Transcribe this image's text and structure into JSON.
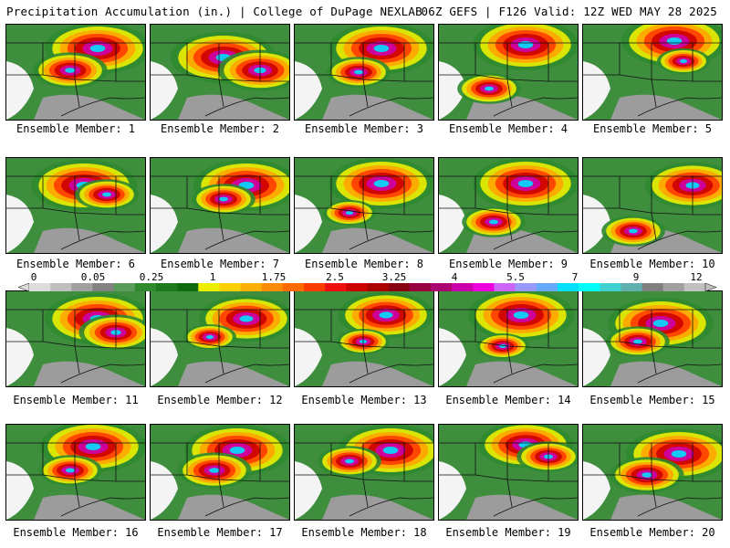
{
  "header": {
    "left": "Precipitation Accumulation (in.) | College of DuPage NEXLAB",
    "right": "06Z GEFS | F126 Valid: 12Z WED MAY 28 2025"
  },
  "panels": [
    {
      "label": "Ensemble Member: 1"
    },
    {
      "label": "Ensemble Member: 2"
    },
    {
      "label": "Ensemble Member: 3"
    },
    {
      "label": "Ensemble Member: 4"
    },
    {
      "label": "Ensemble Member: 5"
    },
    {
      "label": "Ensemble Member: 6"
    },
    {
      "label": "Ensemble Member: 7"
    },
    {
      "label": "Ensemble Member: 8"
    },
    {
      "label": "Ensemble Member: 9"
    },
    {
      "label": "Ensemble Member: 10"
    },
    {
      "label": "Ensemble Member: 11"
    },
    {
      "label": "Ensemble Member: 12"
    },
    {
      "label": "Ensemble Member: 13"
    },
    {
      "label": "Ensemble Member: 14"
    },
    {
      "label": "Ensemble Member: 15"
    },
    {
      "label": "Ensemble Member: 16"
    },
    {
      "label": "Ensemble Member: 17"
    },
    {
      "label": "Ensemble Member: 18"
    },
    {
      "label": "Ensemble Member: 19"
    },
    {
      "label": "Ensemble Member: 20"
    }
  ],
  "colorbar": {
    "tick_labels": [
      "0",
      "0.05",
      "0.25",
      "1",
      "1.75",
      "2.5",
      "3.25",
      "4",
      "5.5",
      "7",
      "9",
      "12"
    ],
    "colors": [
      "#dcdcdc",
      "#bebebe",
      "#a0a0a0",
      "#828282",
      "#5a9a5a",
      "#2f8a2f",
      "#1c7a1c",
      "#0f6a0f",
      "#eeee00",
      "#ffd000",
      "#ffb000",
      "#ff8c00",
      "#ff6a00",
      "#ff3c00",
      "#ee1010",
      "#cc0000",
      "#aa0000",
      "#880010",
      "#990040",
      "#aa0070",
      "#cc00aa",
      "#ee00dd",
      "#cc66ff",
      "#9999ff",
      "#66aaff",
      "#00e0ff",
      "#00ffff",
      "#40d0d0",
      "#60b0b0",
      "#808080",
      "#a0a0a0",
      "#c0c0c0"
    ]
  }
}
